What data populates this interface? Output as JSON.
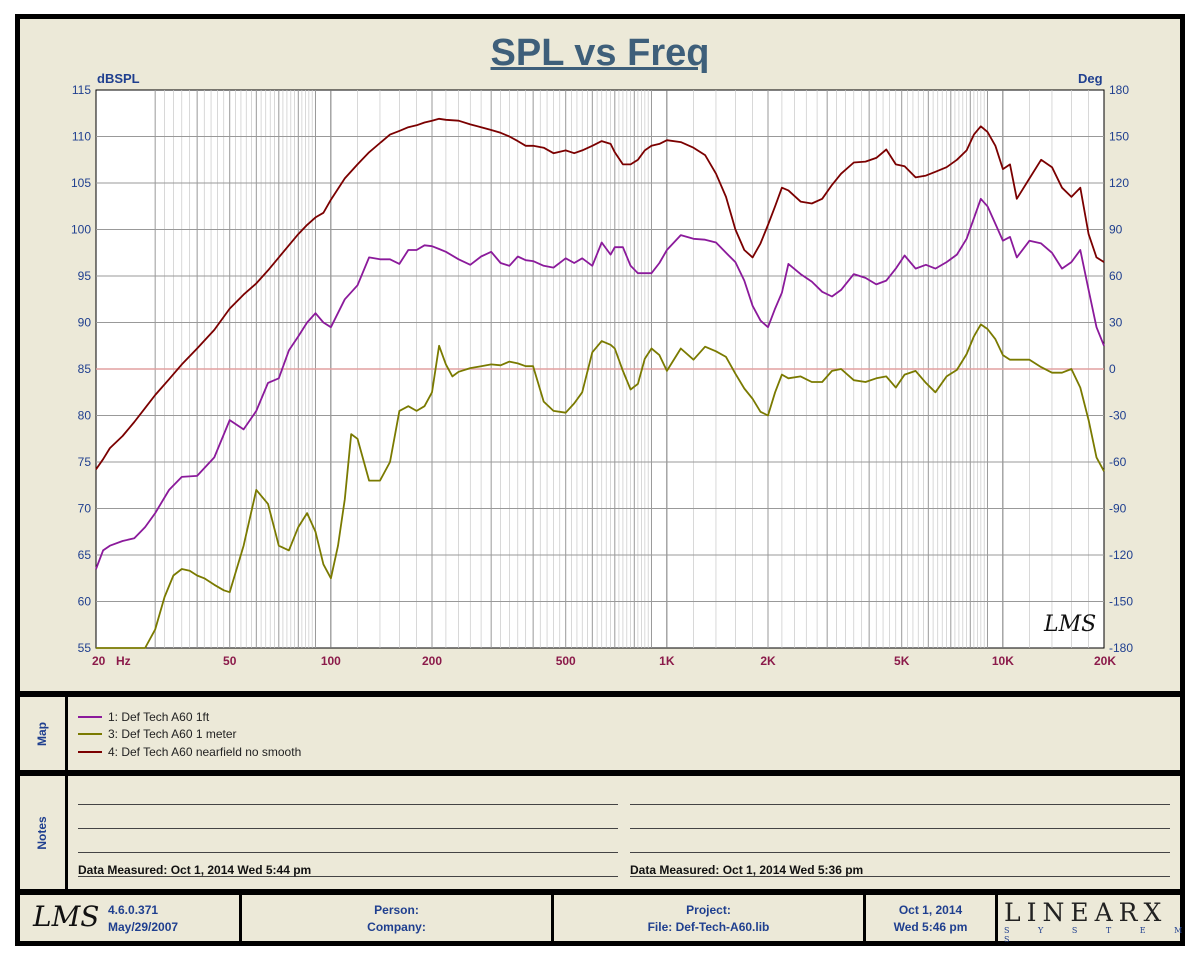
{
  "chart_data": {
    "type": "line",
    "title": "SPL vs Freq",
    "xlabel": "Hz",
    "ylabel": "dBSPL",
    "y2label": "Deg",
    "xscale": "log",
    "xlim": [
      20,
      20000
    ],
    "ylim": [
      55,
      115
    ],
    "y2lim": [
      -180,
      180
    ],
    "grid": true,
    "reference_level": 85,
    "x_ticks": [
      {
        "value": 20,
        "label": "20"
      },
      {
        "value": 50,
        "label": "50"
      },
      {
        "value": 100,
        "label": "100"
      },
      {
        "value": 200,
        "label": "200"
      },
      {
        "value": 500,
        "label": "500"
      },
      {
        "value": 1000,
        "label": "1K"
      },
      {
        "value": 2000,
        "label": "2K"
      },
      {
        "value": 5000,
        "label": "5K"
      },
      {
        "value": 10000,
        "label": "10K"
      },
      {
        "value": 20000,
        "label": "20K"
      }
    ],
    "x_unit_label": "Hz",
    "y_ticks": [
      "115",
      "110",
      "105",
      "100",
      "95",
      "90",
      "85",
      "80",
      "75",
      "70",
      "65",
      "60",
      "55"
    ],
    "y2_ticks": [
      "180",
      "150",
      "120",
      "90",
      "60",
      "30",
      "0",
      "-30",
      "-60",
      "-90",
      "-120",
      "-150",
      "-180"
    ],
    "series": [
      {
        "name": "1: Def Tech A60 1ft",
        "color": "#8b1a9b",
        "x": [
          20,
          21,
          22,
          24,
          26,
          28,
          30,
          33,
          36,
          40,
          45,
          50,
          55,
          60,
          65,
          70,
          75,
          80,
          85,
          90,
          95,
          100,
          110,
          120,
          130,
          140,
          150,
          160,
          170,
          180,
          190,
          200,
          210,
          220,
          240,
          260,
          280,
          300,
          320,
          340,
          360,
          380,
          400,
          430,
          460,
          500,
          530,
          560,
          600,
          640,
          680,
          700,
          740,
          780,
          820,
          860,
          900,
          950,
          1000,
          1100,
          1200,
          1300,
          1400,
          1500,
          1600,
          1700,
          1800,
          1900,
          2000,
          2100,
          2200,
          2300,
          2500,
          2700,
          2900,
          3100,
          3300,
          3600,
          3900,
          4200,
          4500,
          4800,
          5100,
          5500,
          5900,
          6300,
          6800,
          7300,
          7800,
          8200,
          8600,
          9000,
          9500,
          10000,
          10500,
          11000,
          12000,
          13000,
          14000,
          15000,
          16000,
          17000,
          18000,
          19000,
          20000
        ],
        "values": [
          63.5,
          65.5,
          66,
          66.5,
          66.8,
          68,
          69.5,
          72,
          73.4,
          73.5,
          75.5,
          79.5,
          78.5,
          80.5,
          83.5,
          84,
          87,
          88.5,
          90,
          91,
          90,
          89.5,
          92.5,
          94,
          97,
          96.8,
          96.8,
          96.3,
          97.8,
          97.8,
          98.3,
          98.2,
          97.9,
          97.6,
          96.8,
          96.2,
          97.1,
          97.6,
          96.4,
          96.1,
          97.1,
          96.7,
          96.6,
          96.1,
          95.9,
          96.9,
          96.4,
          96.9,
          96.1,
          98.6,
          97.3,
          98.1,
          98.1,
          96.1,
          95.3,
          95.3,
          95.3,
          96.4,
          97.8,
          99.4,
          99.0,
          98.9,
          98.6,
          97.5,
          96.5,
          94.5,
          91.8,
          90.2,
          89.5,
          91.5,
          93.2,
          96.3,
          95.2,
          94.4,
          93.3,
          92.8,
          93.5,
          95.2,
          94.8,
          94.1,
          94.5,
          95.8,
          97.2,
          95.8,
          96.2,
          95.8,
          96.5,
          97.3,
          99.0,
          101.2,
          103.3,
          102.5,
          100.6,
          98.8,
          99.2,
          97.0,
          98.8,
          98.5,
          97.5,
          95.8,
          96.5,
          97.8,
          93.5,
          89.5,
          87.5
        ]
      },
      {
        "name": "3: Def Tech A60 1 meter",
        "color": "#7a7a00",
        "x": [
          20,
          22,
          24,
          26,
          27,
          28,
          30,
          32,
          34,
          36,
          38,
          40,
          42,
          45,
          48,
          50,
          55,
          60,
          65,
          70,
          75,
          80,
          85,
          90,
          95,
          100,
          105,
          110,
          115,
          120,
          130,
          140,
          150,
          160,
          170,
          180,
          190,
          200,
          210,
          220,
          230,
          240,
          260,
          280,
          300,
          320,
          340,
          360,
          380,
          400,
          430,
          460,
          500,
          530,
          560,
          600,
          640,
          680,
          700,
          740,
          780,
          820,
          860,
          900,
          950,
          1000,
          1100,
          1200,
          1300,
          1400,
          1500,
          1600,
          1700,
          1800,
          1900,
          2000,
          2100,
          2200,
          2300,
          2500,
          2700,
          2900,
          3100,
          3300,
          3600,
          3900,
          4200,
          4500,
          4800,
          5100,
          5500,
          5900,
          6300,
          6800,
          7300,
          7800,
          8200,
          8600,
          9000,
          9500,
          10000,
          10500,
          11000,
          12000,
          13000,
          14000,
          15000,
          16000,
          17000,
          18000,
          19000,
          20000
        ],
        "values": [
          55,
          55,
          55,
          55,
          55,
          55,
          57,
          60.5,
          62.8,
          63.5,
          63.3,
          62.8,
          62.5,
          61.8,
          61.2,
          61,
          66,
          72,
          70.5,
          66,
          65.5,
          68,
          69.5,
          67.5,
          64,
          62.5,
          66,
          71,
          78,
          77.5,
          73,
          73,
          75,
          80.5,
          81,
          80.5,
          81,
          82.5,
          87.5,
          85.5,
          84.2,
          84.7,
          85.1,
          85.3,
          85.5,
          85.4,
          85.8,
          85.6,
          85.3,
          85.3,
          81.5,
          80.5,
          80.3,
          81.3,
          82.5,
          86.8,
          88,
          87.6,
          87.2,
          84.8,
          82.8,
          83.4,
          86.1,
          87.2,
          86.5,
          84.8,
          87.2,
          86.0,
          87.4,
          86.9,
          86.3,
          84.5,
          82.9,
          81.8,
          80.4,
          80.0,
          82.5,
          84.4,
          84.0,
          84.2,
          83.6,
          83.6,
          84.8,
          85.0,
          83.8,
          83.6,
          84.0,
          84.2,
          83.0,
          84.4,
          84.8,
          83.5,
          82.5,
          84.2,
          84.9,
          86.6,
          88.5,
          89.8,
          89.3,
          88.2,
          86.5,
          86.0,
          86.0,
          86.0,
          85.2,
          84.6,
          84.6,
          85.0,
          83.0,
          79.5,
          75.5,
          74.0
        ]
      },
      {
        "name": "4: Def Tech A60 nearfield no smooth",
        "color": "#7b0000",
        "x": [
          20,
          21,
          22,
          24,
          26,
          28,
          30,
          33,
          36,
          40,
          45,
          50,
          55,
          60,
          65,
          70,
          75,
          80,
          85,
          90,
          95,
          100,
          110,
          120,
          130,
          140,
          150,
          160,
          170,
          180,
          190,
          200,
          210,
          220,
          240,
          260,
          280,
          300,
          320,
          340,
          360,
          380,
          400,
          430,
          460,
          500,
          530,
          560,
          600,
          640,
          680,
          700,
          740,
          780,
          820,
          860,
          900,
          950,
          1000,
          1100,
          1200,
          1300,
          1400,
          1500,
          1600,
          1700,
          1800,
          1900,
          2000,
          2100,
          2200,
          2300,
          2500,
          2700,
          2900,
          3100,
          3300,
          3600,
          3900,
          4200,
          4500,
          4800,
          5100,
          5500,
          5900,
          6300,
          6800,
          7300,
          7800,
          8200,
          8600,
          9000,
          9500,
          10000,
          10500,
          11000,
          12000,
          13000,
          14000,
          15000,
          16000,
          17000,
          18000,
          19000,
          20000
        ],
        "values": [
          74.2,
          75.3,
          76.5,
          77.8,
          79.3,
          80.8,
          82.2,
          83.9,
          85.5,
          87.2,
          89.2,
          91.5,
          93.0,
          94.2,
          95.6,
          97.0,
          98.3,
          99.5,
          100.5,
          101.3,
          101.8,
          103.2,
          105.5,
          107.0,
          108.3,
          109.3,
          110.2,
          110.6,
          111.0,
          111.2,
          111.5,
          111.7,
          111.9,
          111.8,
          111.7,
          111.3,
          111.0,
          110.7,
          110.4,
          110.0,
          109.5,
          109.0,
          109.0,
          108.8,
          108.2,
          108.5,
          108.2,
          108.5,
          109.0,
          109.5,
          109.2,
          108.3,
          107.0,
          107.0,
          107.5,
          108.5,
          109.0,
          109.2,
          109.6,
          109.4,
          108.8,
          108.0,
          106.0,
          103.5,
          100.0,
          97.8,
          97.0,
          98.5,
          100.5,
          102.5,
          104.5,
          104.2,
          103.0,
          102.8,
          103.3,
          104.8,
          106.0,
          107.2,
          107.3,
          107.7,
          108.6,
          107.0,
          106.8,
          105.6,
          105.8,
          106.2,
          106.7,
          107.5,
          108.5,
          110.2,
          111.1,
          110.5,
          109.0,
          106.5,
          107.0,
          103.3,
          105.5,
          107.5,
          106.7,
          104.5,
          103.5,
          104.5,
          99.5,
          97.0,
          96.5
        ]
      }
    ]
  },
  "legend": {
    "panel_label": "Map",
    "items": [
      {
        "label": "1: Def Tech A60 1ft",
        "color": "#8b1a9b"
      },
      {
        "label": "3: Def Tech A60 1 meter",
        "color": "#7a7a00"
      },
      {
        "label": "4: Def Tech A60 nearfield no smooth",
        "color": "#7b0000"
      }
    ]
  },
  "notes": {
    "panel_label": "Notes",
    "left_measured": "Data Measured: Oct  1, 2014  Wed  5:44 pm",
    "right_measured": "Data Measured: Oct  1, 2014  Wed  5:36 pm"
  },
  "footer": {
    "logo": "LMS",
    "version": "4.6.0.371",
    "version_date": "May/29/2007",
    "person_label": "Person:",
    "company_label": "Company:",
    "project_label": "Project:",
    "file_label": "File: Def-Tech-A60.lib",
    "date": "Oct  1, 2014",
    "time": "Wed  5:46 pm",
    "brand": "LINEARX",
    "brand_sub": "S Y S T E M S"
  },
  "watermark": "LMS"
}
